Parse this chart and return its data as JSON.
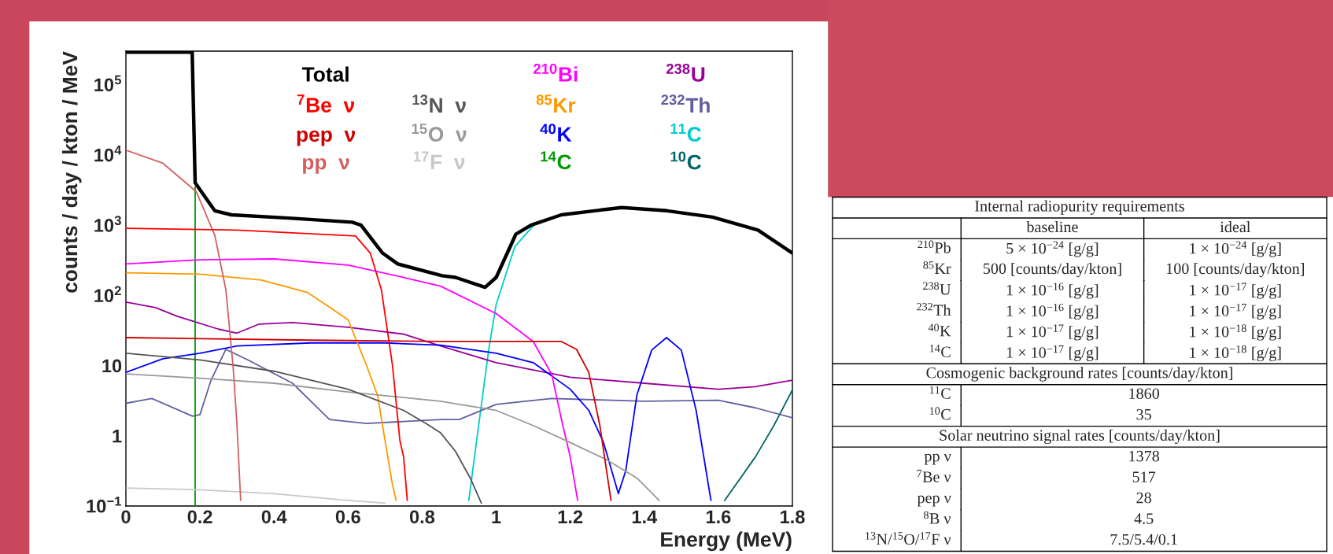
{
  "chart_data": [
    {
      "type": "line",
      "xlabel": "Energy (MeV)",
      "ylabel": "counts / day / kton / MeV",
      "log": "y",
      "legend": "top",
      "xlim": [
        0,
        1.8
      ],
      "xticks": [
        0,
        0.2,
        0.4,
        0.6,
        0.8,
        1,
        1.2,
        1.4,
        1.6,
        1.8
      ],
      "ylim": [
        0.1,
        300000
      ],
      "yticks": [
        {
          "value": 0.1,
          "label": "10$^{−1}$"
        },
        1,
        10,
        {
          "value": 100,
          "label": "10$^{2}$"
        },
        {
          "value": 1000,
          "label": "10$^{3}$"
        },
        {
          "value": 10000,
          "label": "10$^{4}$"
        },
        {
          "value": 100000,
          "label": "10$^{5}$"
        }
      ],
      "series": [
        {
          "name": "Total",
          "color": "#000000",
          "x": [
            0,
            0.1,
            0.179,
            0.187,
            0.24,
            0.285,
            0.448,
            0.611,
            0.635,
            0.693,
            0.734,
            0.854,
            0.89,
            0.97,
            1.0,
            1.053,
            1.094,
            1.176,
            1.339,
            1.461,
            1.584,
            1.707,
            1.8
          ],
          "values": [
            290000,
            290000,
            290000,
            4000,
            1600,
            1400,
            1250,
            1100,
            1000,
            400,
            280,
            190,
            180,
            130,
            180,
            740,
            1000,
            1400,
            1780,
            1600,
            1300,
            850,
            400
          ]
        },
        {
          "name": "$^{7}$Be  ν",
          "color": "#ff0000",
          "x": [
            0,
            0.3,
            0.62,
            0.66,
            0.69,
            0.72,
            0.74,
            0.75,
            0.76
          ],
          "values": [
            900,
            850,
            700,
            400,
            120,
            10,
            0.85,
            0.5,
            0.12
          ]
        },
        {
          "name": "pep  ν",
          "color": "#d00000",
          "x": [
            0,
            0.5,
            0.85,
            1.176,
            1.217,
            1.25,
            1.28,
            1.31
          ],
          "values": [
            25,
            23,
            22,
            22,
            17,
            8,
            1.4,
            0.12
          ]
        },
        {
          "name": "pp  ν",
          "color": "#d46060",
          "x": [
            0,
            0.1,
            0.19,
            0.24,
            0.27,
            0.29,
            0.3,
            0.31
          ],
          "values": [
            11700,
            7600,
            3000,
            720,
            120,
            9,
            1.4,
            0.12
          ]
        },
        {
          "name": "$^{13}$N  ν",
          "color": "#555555",
          "x": [
            0,
            0.2,
            0.4,
            0.6,
            0.75,
            0.81,
            0.85,
            0.89,
            0.93,
            0.96
          ],
          "values": [
            15,
            12,
            8.3,
            4.6,
            2.3,
            1.5,
            1.1,
            0.6,
            0.25,
            0.11
          ]
        },
        {
          "name": "$^{15}$O  ν",
          "color": "#999999",
          "x": [
            0,
            0.2,
            0.4,
            0.6,
            0.85,
            0.9,
            1.0,
            1.1,
            1.2,
            1.3,
            1.38,
            1.44
          ],
          "values": [
            7.6,
            6.6,
            5.6,
            4.2,
            3.1,
            2.8,
            2.3,
            1.4,
            0.8,
            0.45,
            0.25,
            0.12
          ]
        },
        {
          "name": "$^{17}$F  ν",
          "color": "#c8c8c8",
          "x": [
            0,
            0.2,
            0.4,
            0.6,
            0.7
          ],
          "values": [
            0.18,
            0.17,
            0.15,
            0.12,
            0.11
          ]
        },
        {
          "name": "$^{210}$Bi",
          "color": "#ff00ff",
          "x": [
            0,
            0.2,
            0.4,
            0.6,
            0.75,
            0.85,
            1.0,
            1.1,
            1.15,
            1.18,
            1.2,
            1.22
          ],
          "values": [
            280,
            320,
            330,
            270,
            180,
            135,
            55,
            22,
            7.5,
            1.4,
            0.5,
            0.12
          ]
        },
        {
          "name": "$^{85}$Kr",
          "color": "#ff9900",
          "x": [
            0,
            0.2,
            0.366,
            0.49,
            0.6,
            0.65,
            0.68,
            0.7,
            0.72,
            0.73
          ],
          "values": [
            210,
            200,
            165,
            110,
            45,
            10,
            3.7,
            0.85,
            0.2,
            0.12
          ]
        },
        {
          "name": "$^{40}$K",
          "color": "#0000ff",
          "x": [
            0,
            0.1,
            0.2,
            0.3,
            0.5,
            0.7,
            0.85,
            1.0,
            1.1,
            1.2,
            1.25,
            1.29,
            1.33,
            1.35,
            1.38,
            1.42,
            1.46,
            1.5,
            1.54,
            1.58
          ],
          "values": [
            8,
            12.5,
            15,
            19,
            21,
            21,
            19.5,
            15,
            11,
            4.6,
            2.3,
            0.8,
            0.15,
            0.32,
            3.8,
            16.6,
            25,
            16.6,
            2.3,
            0.12
          ]
        },
        {
          "name": "$^{14}$C",
          "color": "#009900",
          "x": [
            0.187,
            0.187
          ],
          "values": [
            3500,
            0.1
          ]
        },
        {
          "name": "$^{238}$U",
          "color": "#990099",
          "x": [
            0,
            0.08,
            0.14,
            0.25,
            0.3,
            0.36,
            0.45,
            0.6,
            0.75,
            0.85,
            1.0,
            1.2,
            1.4,
            1.6,
            1.7,
            1.8
          ],
          "values": [
            80,
            67,
            50,
            33,
            29,
            39,
            41,
            35,
            28,
            19,
            11,
            6.8,
            5.6,
            4.6,
            5,
            6.2
          ]
        },
        {
          "name": "$^{232}$Th",
          "color": "#6060a0",
          "x": [
            0,
            0.07,
            0.18,
            0.2,
            0.23,
            0.27,
            0.33,
            0.45,
            0.55,
            0.65,
            0.85,
            0.9,
            1.0,
            1.15,
            1.4,
            1.6,
            1.7,
            1.8
          ],
          "values": [
            2.9,
            3.4,
            1.9,
            2.0,
            6.2,
            17,
            12,
            5.6,
            1.7,
            1.5,
            1.7,
            1.7,
            2.8,
            3.4,
            3.1,
            3.2,
            2.5,
            1.8
          ]
        },
        {
          "name": "$^{11}$C",
          "color": "#00cccc",
          "x": [
            0.926,
            0.95,
            0.98,
            1.0,
            1.05,
            1.1
          ],
          "values": [
            0.12,
            1.1,
            17,
            74,
            490,
            980
          ]
        },
        {
          "name": "$^{10}$C",
          "color": "#006666",
          "x": [
            1.617,
            1.7,
            1.75,
            1.8
          ],
          "values": [
            0.12,
            0.5,
            1.4,
            4.5
          ]
        }
      ]
    },
    {
      "type": "other",
      "annotations": [
        "Internal radiopurity requirements",
        "baseline",
        "ideal",
        "$^{210}$Pb",
        "5 × 10$^{−24}$ [g/g]",
        "1 × 10$^{−24}$ [g/g]",
        "$^{85}$Kr",
        "500 [counts/day/kton]",
        "100 [counts/day/kton]",
        "$^{238}$U",
        "1 × 10$^{−16}$ [g/g]",
        "1 × 10$^{−17}$ [g/g]",
        "$^{232}$Th",
        "1 × 10$^{−16}$ [g/g]",
        "1 × 10$^{−17}$ [g/g]",
        "$^{40}$K",
        "1 × 10$^{−17}$ [g/g]",
        "1 × 10$^{−18}$ [g/g]",
        "$^{14}$C",
        "1 × 10$^{−17}$ [g/g]",
        "1 × 10$^{−18}$ [g/g]",
        "Cosmogenic background rates [counts/day/kton]",
        "$^{11}$C",
        "1860",
        "$^{10}$C",
        "35",
        "Solar neutrino signal rates [counts/day/kton]",
        "pp ν",
        "1378",
        "$^{7}$Be ν",
        "517",
        "pep ν",
        "28",
        "$^{8}$B ν",
        "4.5",
        "$^{13}$N/$^{15}$O/$^{17}$F ν",
        "7.5/5.4/0.1"
      ]
    }
  ]
}
